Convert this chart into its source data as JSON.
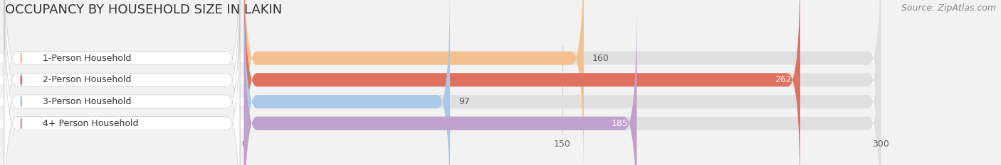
{
  "title": "OCCUPANCY BY HOUSEHOLD SIZE IN LAKIN",
  "source": "Source: ZipAtlas.com",
  "categories": [
    "1-Person Household",
    "2-Person Household",
    "3-Person Household",
    "4+ Person Household"
  ],
  "values": [
    160,
    262,
    97,
    185
  ],
  "bar_colors": [
    "#f5c090",
    "#e07060",
    "#aac8e8",
    "#c0a0cc"
  ],
  "label_colors": [
    "#555555",
    "#ffffff",
    "#555555",
    "#ffffff"
  ],
  "value_inside": [
    false,
    true,
    false,
    true
  ],
  "xlim": [
    0,
    300
  ],
  "xticks": [
    0,
    150,
    300
  ],
  "background_color": "#f2f2f2",
  "bar_background_color": "#e0e0e0",
  "title_fontsize": 13,
  "source_fontsize": 9,
  "label_fontsize": 9,
  "value_fontsize": 9,
  "bar_height": 0.62
}
